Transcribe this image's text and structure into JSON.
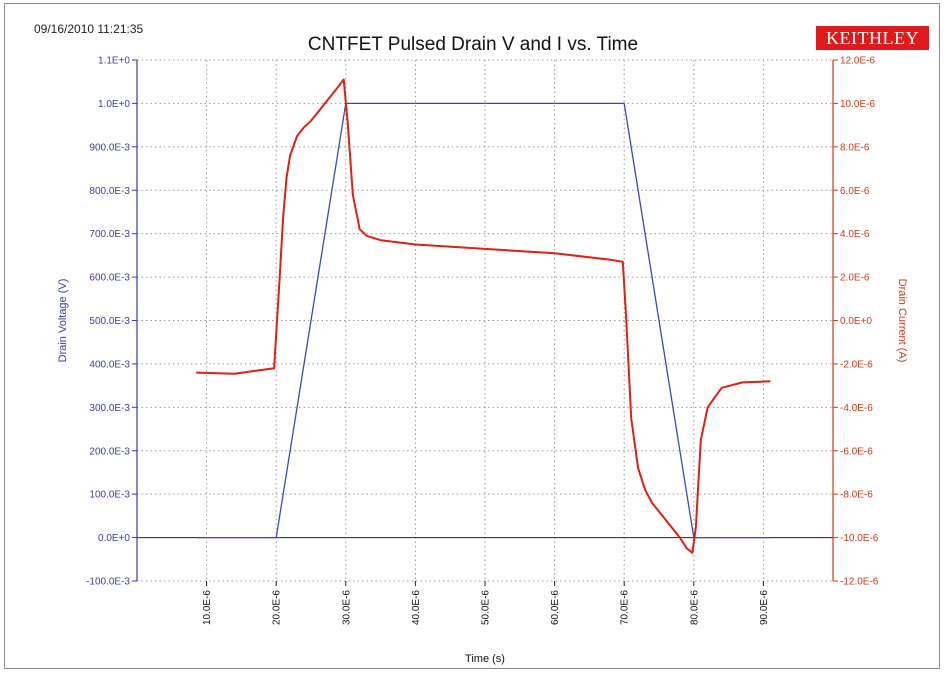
{
  "header": {
    "timestamp": "09/16/2010 11:21:35",
    "logo_text": "KEITHLEY"
  },
  "colors": {
    "voltage": "#3b49b8",
    "current": "#e02010",
    "left_axis": "#3a3fa0",
    "right_axis": "#d03a1a",
    "logo_bg": "#e01a1a",
    "grid": "#9a9a9a"
  },
  "chart_data": {
    "type": "line",
    "title": "CNTFET Pulsed Drain V and I vs. Time",
    "xlabel": "Time (s)",
    "ylabel": "Drain Voltage (V)",
    "y2label": "Drain Current (A)",
    "xlim": [
      0,
      100
    ],
    "ylim": [
      -0.1,
      1.1
    ],
    "y2lim": [
      -12,
      12
    ],
    "grid": true,
    "x_ticks": [
      {
        "value": 10,
        "label": "10.0E-6"
      },
      {
        "value": 20,
        "label": "20.0E-6"
      },
      {
        "value": 30,
        "label": "30.0E-6"
      },
      {
        "value": 40,
        "label": "40.0E-6"
      },
      {
        "value": 50,
        "label": "50.0E-6"
      },
      {
        "value": 60,
        "label": "60.0E-6"
      },
      {
        "value": 70,
        "label": "70.0E-6"
      },
      {
        "value": 80,
        "label": "80.0E-6"
      },
      {
        "value": 90,
        "label": "90.0E-6"
      }
    ],
    "y_ticks": [
      {
        "value": 1.1,
        "label": "1.1E+0"
      },
      {
        "value": 1.0,
        "label": "1.0E+0"
      },
      {
        "value": 0.9,
        "label": "900.0E-3"
      },
      {
        "value": 0.8,
        "label": "800.0E-3"
      },
      {
        "value": 0.7,
        "label": "700.0E-3"
      },
      {
        "value": 0.6,
        "label": "600.0E-3"
      },
      {
        "value": 0.5,
        "label": "500.0E-3"
      },
      {
        "value": 0.4,
        "label": "400.0E-3"
      },
      {
        "value": 0.3,
        "label": "300.0E-3"
      },
      {
        "value": 0.2,
        "label": "200.0E-3"
      },
      {
        "value": 0.1,
        "label": "100.0E-3"
      },
      {
        "value": 0.0,
        "label": "0.0E+0"
      },
      {
        "value": -0.1,
        "label": "-100.0E-3"
      }
    ],
    "y2_ticks": [
      {
        "value": 12,
        "label": "12.0E-6"
      },
      {
        "value": 10,
        "label": "10.0E-6"
      },
      {
        "value": 8,
        "label": "8.0E-6"
      },
      {
        "value": 6,
        "label": "6.0E-6"
      },
      {
        "value": 4,
        "label": "4.0E-6"
      },
      {
        "value": 2,
        "label": "2.0E-6"
      },
      {
        "value": 0,
        "label": "0.0E+0"
      },
      {
        "value": -2,
        "label": "-2.0E-6"
      },
      {
        "value": -4,
        "label": "-4.0E-6"
      },
      {
        "value": -6,
        "label": "-6.0E-6"
      },
      {
        "value": -8,
        "label": "-8.0E-6"
      },
      {
        "value": -10,
        "label": "-10.0E-6"
      },
      {
        "value": -12,
        "label": "-12.0E-6"
      }
    ],
    "series": [
      {
        "axis": "left",
        "x": [
          8.5,
          20.0,
          30.0,
          50.0,
          70.0,
          80.0,
          91.0
        ],
        "y": [
          0.0,
          0.0,
          1.0,
          1.0,
          1.0,
          0.0,
          0.0
        ]
      },
      {
        "axis": "right",
        "x": [
          8.5,
          14.0,
          19.7,
          20.5,
          21.0,
          21.5,
          22.0,
          23.0,
          24.0,
          25.0,
          26.0,
          27.0,
          28.0,
          29.0,
          29.7,
          30.3,
          31.0,
          32.0,
          33.0,
          35.0,
          40.0,
          50.0,
          60.0,
          68.0,
          69.8,
          70.3,
          71.0,
          72.0,
          73.0,
          74.0,
          76.0,
          78.0,
          79.0,
          79.8,
          80.3,
          81.0,
          82.0,
          84.0,
          87.0,
          91.0
        ],
        "y": [
          -2.4,
          -2.45,
          -2.2,
          2.0,
          4.8,
          6.6,
          7.6,
          8.5,
          8.9,
          9.2,
          9.6,
          10.0,
          10.4,
          10.8,
          11.1,
          9.0,
          5.8,
          4.2,
          3.9,
          3.7,
          3.5,
          3.3,
          3.1,
          2.8,
          2.7,
          0.0,
          -4.5,
          -6.8,
          -7.8,
          -8.4,
          -9.2,
          -10.0,
          -10.5,
          -10.7,
          -9.5,
          -5.5,
          -4.0,
          -3.1,
          -2.85,
          -2.8
        ]
      }
    ]
  }
}
